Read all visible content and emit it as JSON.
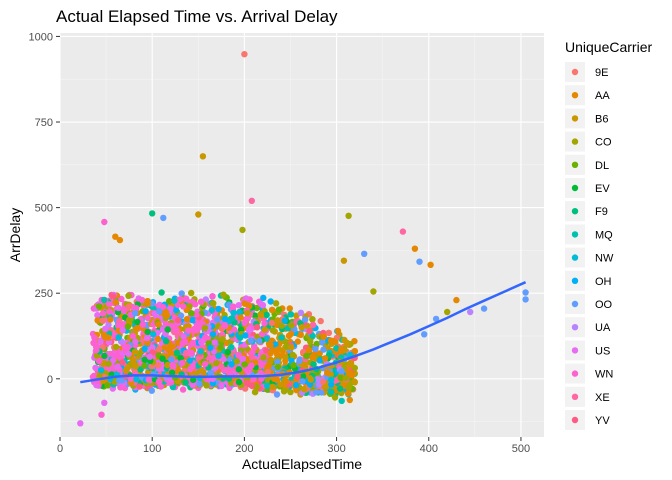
{
  "chart_data": {
    "type": "scatter",
    "title": "Actual Elapsed Time vs. Arrival Delay",
    "xlabel": "ActualElapsedTime",
    "ylabel": "ArrDelay",
    "xlim": [
      0,
      525
    ],
    "ylim": [
      -170,
      1010
    ],
    "x_ticks": [
      0,
      100,
      200,
      300,
      400,
      500
    ],
    "y_ticks": [
      0,
      250,
      500,
      750,
      1000
    ],
    "grid": true,
    "legend": {
      "title": "UniqueCarrier",
      "placement": "right",
      "items": [
        {
          "name": "9E",
          "color": "#F8766D"
        },
        {
          "name": "AA",
          "color": "#E58700"
        },
        {
          "name": "B6",
          "color": "#C99800"
        },
        {
          "name": "CO",
          "color": "#A3A500"
        },
        {
          "name": "DL",
          "color": "#6BB100"
        },
        {
          "name": "EV",
          "color": "#00BA38"
        },
        {
          "name": "F9",
          "color": "#00BF7D"
        },
        {
          "name": "MQ",
          "color": "#00C0AF"
        },
        {
          "name": "NW",
          "color": "#00BCD8"
        },
        {
          "name": "OH",
          "color": "#00B0F6"
        },
        {
          "name": "OO",
          "color": "#619CFF"
        },
        {
          "name": "UA",
          "color": "#B983FF"
        },
        {
          "name": "US",
          "color": "#E76BF3"
        },
        {
          "name": "WN",
          "color": "#FD61D1"
        },
        {
          "name": "XE",
          "color": "#FF67A4"
        },
        {
          "name": "YV",
          "color": "#FF5A82"
        }
      ]
    },
    "outliers": [
      {
        "x": 200,
        "y": 948,
        "carrier": "9E"
      },
      {
        "x": 155,
        "y": 650,
        "carrier": "B6"
      },
      {
        "x": 208,
        "y": 520,
        "carrier": "XE"
      },
      {
        "x": 100,
        "y": 483,
        "carrier": "F9"
      },
      {
        "x": 48,
        "y": 458,
        "carrier": "WN"
      },
      {
        "x": 112,
        "y": 470,
        "carrier": "OO"
      },
      {
        "x": 372,
        "y": 430,
        "carrier": "XE"
      },
      {
        "x": 385,
        "y": 380,
        "carrier": "AA"
      },
      {
        "x": 402,
        "y": 333,
        "carrier": "AA"
      },
      {
        "x": 390,
        "y": 342,
        "carrier": "OO"
      },
      {
        "x": 313,
        "y": 476,
        "carrier": "CO"
      },
      {
        "x": 150,
        "y": 480,
        "carrier": "B6"
      },
      {
        "x": 198,
        "y": 435,
        "carrier": "CO"
      },
      {
        "x": 505,
        "y": 252,
        "carrier": "OO"
      },
      {
        "x": 505,
        "y": 232,
        "carrier": "OO"
      },
      {
        "x": 430,
        "y": 230,
        "carrier": "AA"
      },
      {
        "x": 420,
        "y": 195,
        "carrier": "CO"
      },
      {
        "x": 22,
        "y": -130,
        "carrier": "US"
      },
      {
        "x": 45,
        "y": -105,
        "carrier": "WN"
      },
      {
        "x": 48,
        "y": -70,
        "carrier": "US"
      },
      {
        "x": 60,
        "y": 415,
        "carrier": "AA"
      },
      {
        "x": 65,
        "y": 405,
        "carrier": "AA"
      },
      {
        "x": 330,
        "y": 365,
        "carrier": "OO"
      },
      {
        "x": 308,
        "y": 345,
        "carrier": "B6"
      },
      {
        "x": 340,
        "y": 255,
        "carrier": "CO"
      },
      {
        "x": 460,
        "y": 205,
        "carrier": "OO"
      },
      {
        "x": 445,
        "y": 195,
        "carrier": "UA"
      },
      {
        "x": 408,
        "y": 175,
        "carrier": "OO"
      },
      {
        "x": 395,
        "y": 130,
        "carrier": "OO"
      }
    ],
    "smooth_line": {
      "x": [
        22,
        40,
        60,
        80,
        100,
        120,
        140,
        160,
        180,
        200,
        220,
        240,
        260,
        280,
        300,
        320,
        340,
        360,
        380,
        400,
        420,
        440,
        460,
        480,
        505
      ],
      "y": [
        -10,
        -2,
        6,
        10,
        10,
        8,
        6,
        6,
        7,
        7,
        8,
        12,
        20,
        32,
        48,
        66,
        86,
        108,
        130,
        154,
        178,
        204,
        228,
        252,
        282
      ]
    }
  }
}
